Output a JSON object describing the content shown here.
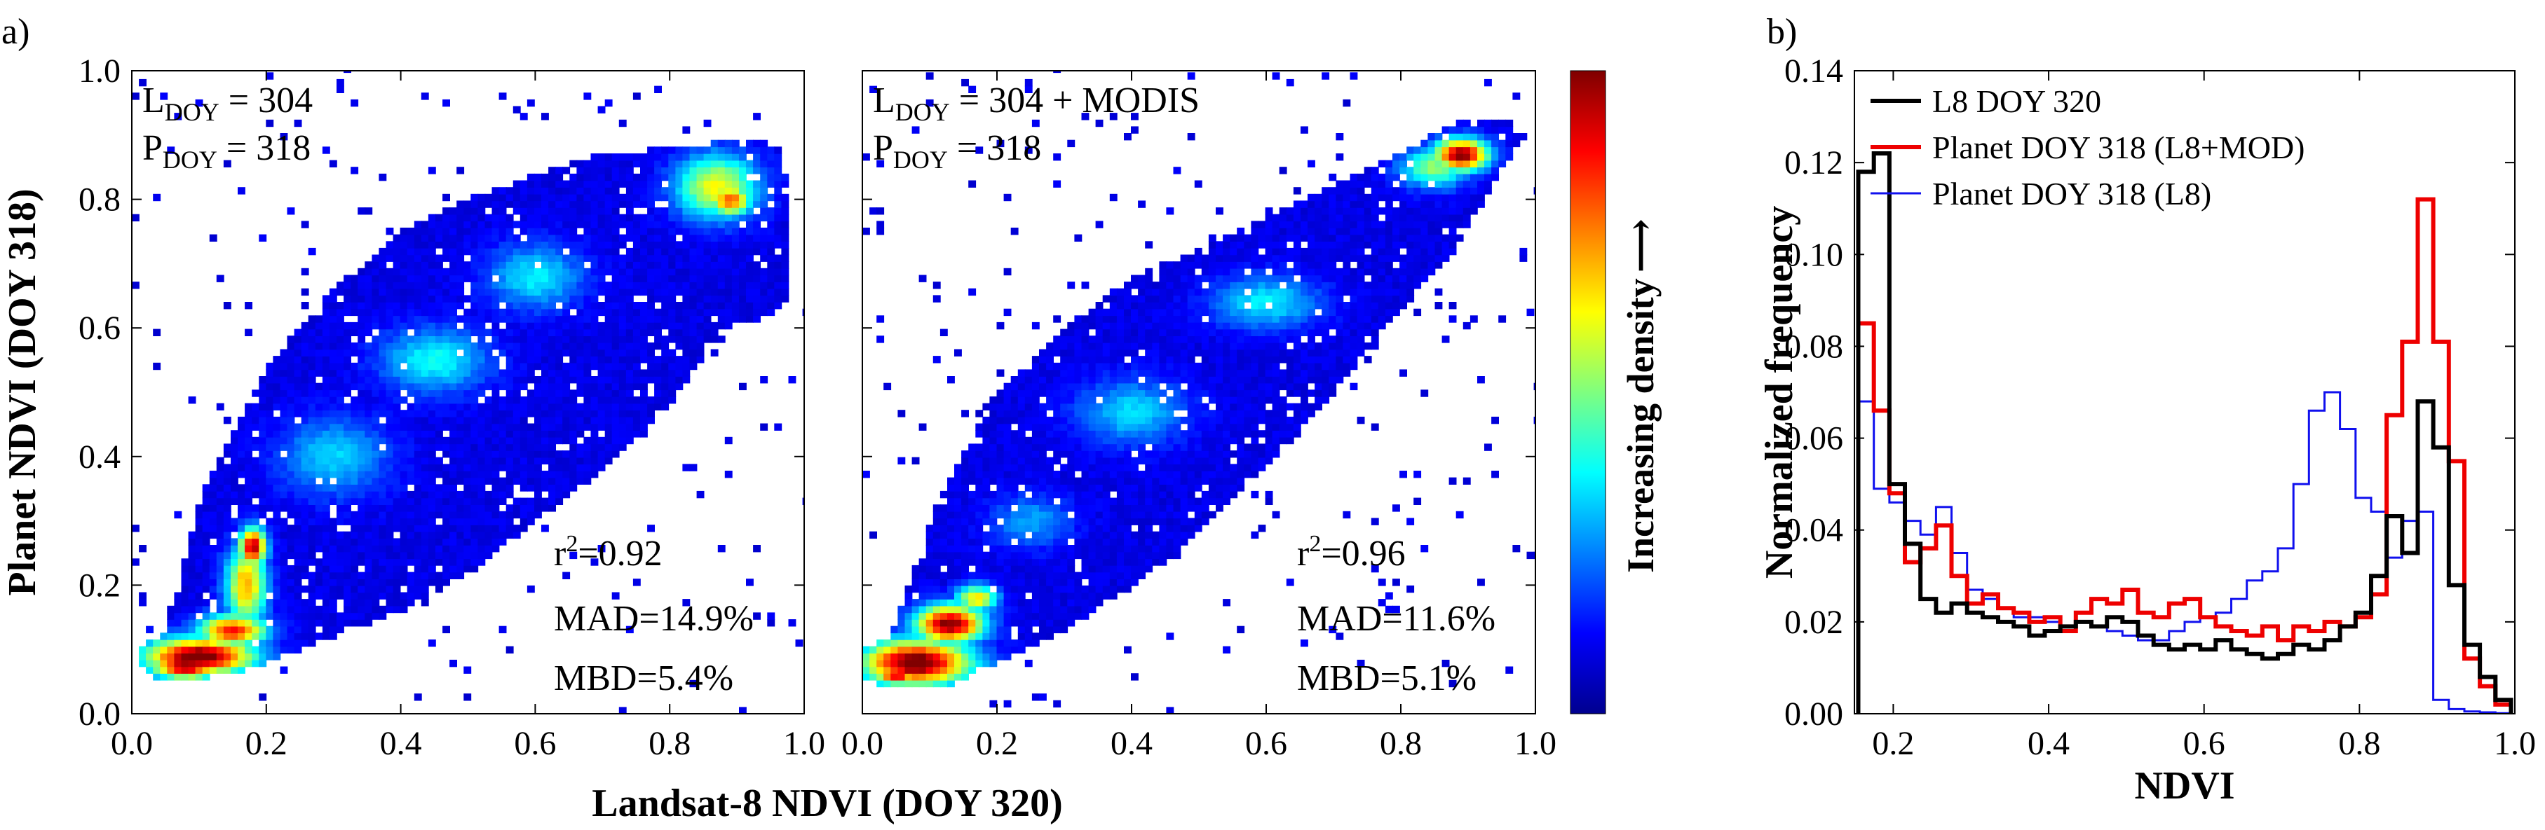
{
  "figure": {
    "panel_a_label": "a)",
    "panel_b_label": "b)",
    "shared_x_label": "Landsat-8 NDVI (DOY 320)",
    "shared_y_label": "Planet NDVI (DOY 318)",
    "colorbar_label": "Increasing density",
    "colorbar_arrow": "⟶"
  },
  "chart_data": [
    {
      "type": "heatmap",
      "name": "scatter-left",
      "xlabel": "Landsat-8 NDVI (DOY 320)",
      "ylabel": "Planet NDVI (DOY 318)",
      "xlim": [
        0.0,
        1.0
      ],
      "ylim": [
        0.0,
        1.0
      ],
      "xticks": [
        0.0,
        0.2,
        0.4,
        0.6,
        0.8,
        1.0
      ],
      "xtick_labels": [
        "0.0",
        "0.2",
        "0.4",
        "0.6",
        "0.8",
        "1.0"
      ],
      "yticks": [
        0.0,
        0.2,
        0.4,
        0.6,
        0.8,
        1.0
      ],
      "ytick_labels": [
        "0.0",
        "0.2",
        "0.4",
        "0.6",
        "0.8",
        "1.0"
      ],
      "annot_top": {
        "l_main": "L",
        "l_sub": "DOY",
        "l_val": " = 304",
        "p_main": "P",
        "p_sub": "DOY",
        "p_val": " = 318"
      },
      "annot_stats": {
        "r2_main": "r",
        "r2_sup": "2",
        "r2_val": "=0.92",
        "mad": "MAD=14.9%",
        "mbd": "MBD=5.4%"
      },
      "upper_envelope": [
        [
          0.03,
          0.07
        ],
        [
          0.05,
          0.14
        ],
        [
          0.07,
          0.2
        ],
        [
          0.1,
          0.33
        ],
        [
          0.15,
          0.44
        ],
        [
          0.2,
          0.54
        ],
        [
          0.3,
          0.66
        ],
        [
          0.4,
          0.75
        ],
        [
          0.5,
          0.8
        ],
        [
          0.6,
          0.84
        ],
        [
          0.7,
          0.87
        ],
        [
          0.8,
          0.88
        ],
        [
          0.88,
          0.89
        ],
        [
          0.96,
          0.89
        ],
        [
          0.98,
          0.8
        ],
        [
          0.98,
          0.65
        ]
      ],
      "lower_envelope": [
        [
          0.98,
          0.65
        ],
        [
          0.95,
          0.62
        ],
        [
          0.88,
          0.6
        ],
        [
          0.8,
          0.48
        ],
        [
          0.7,
          0.38
        ],
        [
          0.6,
          0.3
        ],
        [
          0.5,
          0.22
        ],
        [
          0.4,
          0.16
        ],
        [
          0.3,
          0.12
        ],
        [
          0.2,
          0.08
        ],
        [
          0.12,
          0.06
        ],
        [
          0.06,
          0.05
        ],
        [
          0.03,
          0.05
        ]
      ],
      "density_centers": [
        {
          "x": 0.1,
          "y": 0.09,
          "w": 0.08,
          "h": 0.028,
          "level": 1.0
        },
        {
          "x": 0.08,
          "y": 0.075,
          "w": 0.05,
          "h": 0.02,
          "level": 0.95
        },
        {
          "x": 0.15,
          "y": 0.13,
          "w": 0.05,
          "h": 0.025,
          "level": 0.8
        },
        {
          "x": 0.17,
          "y": 0.2,
          "w": 0.03,
          "h": 0.06,
          "level": 0.65
        },
        {
          "x": 0.18,
          "y": 0.26,
          "w": 0.02,
          "h": 0.03,
          "level": 0.9
        },
        {
          "x": 0.87,
          "y": 0.82,
          "w": 0.06,
          "h": 0.05,
          "level": 0.55
        },
        {
          "x": 0.89,
          "y": 0.8,
          "w": 0.03,
          "h": 0.025,
          "level": 0.75
        },
        {
          "x": 0.45,
          "y": 0.55,
          "w": 0.08,
          "h": 0.05,
          "level": 0.3
        },
        {
          "x": 0.6,
          "y": 0.68,
          "w": 0.07,
          "h": 0.05,
          "level": 0.28
        },
        {
          "x": 0.3,
          "y": 0.4,
          "w": 0.08,
          "h": 0.06,
          "level": 0.25
        }
      ]
    },
    {
      "type": "heatmap",
      "name": "scatter-right",
      "xlabel": "Landsat-8 NDVI (DOY 320)",
      "ylabel": "Planet NDVI (DOY 318)",
      "xlim": [
        0.0,
        1.0
      ],
      "ylim": [
        0.0,
        1.0
      ],
      "xticks": [
        0.0,
        0.2,
        0.4,
        0.6,
        0.8,
        1.0
      ],
      "xtick_labels": [
        "0.0",
        "0.2",
        "0.4",
        "0.6",
        "0.8",
        "1.0"
      ],
      "yticks": [
        0.0,
        0.2,
        0.4,
        0.6,
        0.8,
        1.0
      ],
      "annot_top": {
        "l_main": "L",
        "l_sub": "DOY",
        "l_val": " = 304 + MODIS",
        "p_main": "P",
        "p_sub": "DOY",
        "p_val": " = 318"
      },
      "annot_stats": {
        "r2_main": "r",
        "r2_sup": "2",
        "r2_val": "=0.96",
        "mad": "MAD=11.6%",
        "mbd": "MBD=5.1%"
      },
      "upper_envelope": [
        [
          0.02,
          0.06
        ],
        [
          0.04,
          0.12
        ],
        [
          0.07,
          0.2
        ],
        [
          0.1,
          0.3
        ],
        [
          0.15,
          0.4
        ],
        [
          0.2,
          0.5
        ],
        [
          0.3,
          0.6
        ],
        [
          0.4,
          0.68
        ],
        [
          0.5,
          0.72
        ],
        [
          0.6,
          0.77
        ],
        [
          0.7,
          0.82
        ],
        [
          0.8,
          0.87
        ],
        [
          0.88,
          0.92
        ],
        [
          0.95,
          0.92
        ],
        [
          0.98,
          0.89
        ]
      ],
      "lower_envelope": [
        [
          0.98,
          0.89
        ],
        [
          0.95,
          0.85
        ],
        [
          0.88,
          0.72
        ],
        [
          0.8,
          0.63
        ],
        [
          0.7,
          0.5
        ],
        [
          0.6,
          0.38
        ],
        [
          0.5,
          0.28
        ],
        [
          0.4,
          0.2
        ],
        [
          0.3,
          0.13
        ],
        [
          0.2,
          0.08
        ],
        [
          0.12,
          0.05
        ],
        [
          0.05,
          0.04
        ],
        [
          0.02,
          0.04
        ]
      ],
      "density_centers": [
        {
          "x": 0.08,
          "y": 0.08,
          "w": 0.08,
          "h": 0.035,
          "level": 1.0
        },
        {
          "x": 0.13,
          "y": 0.14,
          "w": 0.05,
          "h": 0.03,
          "level": 0.95
        },
        {
          "x": 0.05,
          "y": 0.06,
          "w": 0.03,
          "h": 0.015,
          "level": 0.85
        },
        {
          "x": 0.17,
          "y": 0.18,
          "w": 0.03,
          "h": 0.02,
          "level": 0.6
        },
        {
          "x": 0.89,
          "y": 0.87,
          "w": 0.04,
          "h": 0.025,
          "level": 0.95
        },
        {
          "x": 0.85,
          "y": 0.85,
          "w": 0.05,
          "h": 0.03,
          "level": 0.45
        },
        {
          "x": 0.6,
          "y": 0.64,
          "w": 0.08,
          "h": 0.04,
          "level": 0.28
        },
        {
          "x": 0.4,
          "y": 0.47,
          "w": 0.08,
          "h": 0.05,
          "level": 0.25
        },
        {
          "x": 0.25,
          "y": 0.3,
          "w": 0.06,
          "h": 0.04,
          "level": 0.2
        }
      ]
    },
    {
      "type": "line",
      "name": "histogram",
      "xlabel": "NDVI",
      "ylabel": "Normalized frequency",
      "xlim": [
        0.15,
        1.0
      ],
      "ylim": [
        0.0,
        0.14
      ],
      "xticks": [
        0.2,
        0.4,
        0.6,
        0.8,
        1.0
      ],
      "xtick_labels": [
        "0.2",
        "0.4",
        "0.6",
        "0.8",
        "1.0"
      ],
      "yticks": [
        0.0,
        0.02,
        0.04,
        0.06,
        0.08,
        0.1,
        0.12,
        0.14
      ],
      "ytick_labels": [
        "0.00",
        "0.02",
        "0.04",
        "0.06",
        "0.08",
        "0.10",
        "0.12",
        "0.14"
      ],
      "bin_edges": [
        0.155,
        0.175,
        0.195,
        0.215,
        0.235,
        0.255,
        0.275,
        0.295,
        0.315,
        0.335,
        0.355,
        0.375,
        0.395,
        0.415,
        0.435,
        0.455,
        0.475,
        0.495,
        0.515,
        0.535,
        0.555,
        0.575,
        0.595,
        0.615,
        0.635,
        0.655,
        0.675,
        0.695,
        0.715,
        0.735,
        0.755,
        0.775,
        0.795,
        0.815,
        0.835,
        0.855,
        0.875,
        0.895,
        0.915,
        0.935,
        0.955,
        0.975,
        0.995
      ],
      "series": [
        {
          "name": "L8 DOY 320",
          "color": "#000000",
          "values": [
            0.118,
            0.122,
            0.05,
            0.037,
            0.025,
            0.022,
            0.024,
            0.022,
            0.021,
            0.02,
            0.019,
            0.017,
            0.018,
            0.019,
            0.02,
            0.019,
            0.021,
            0.02,
            0.017,
            0.015,
            0.014,
            0.015,
            0.014,
            0.016,
            0.014,
            0.013,
            0.012,
            0.013,
            0.015,
            0.014,
            0.016,
            0.019,
            0.022,
            0.03,
            0.043,
            0.035,
            0.068,
            0.058,
            0.028,
            0.015,
            0.008,
            0.003
          ]
        },
        {
          "name": "Planet DOY 318 (L8+MOD)",
          "color": "#ee0000",
          "values": [
            0.085,
            0.066,
            0.048,
            0.033,
            0.036,
            0.041,
            0.03,
            0.024,
            0.026,
            0.023,
            0.022,
            0.02,
            0.021,
            0.018,
            0.022,
            0.025,
            0.024,
            0.027,
            0.022,
            0.021,
            0.024,
            0.025,
            0.021,
            0.019,
            0.018,
            0.017,
            0.019,
            0.016,
            0.019,
            0.018,
            0.02,
            0.019,
            0.021,
            0.026,
            0.065,
            0.081,
            0.112,
            0.081,
            0.055,
            0.012,
            0.006,
            0.002
          ]
        },
        {
          "name": "Planet DOY 318 (L8)",
          "color": "#1010ee",
          "values": [
            0.068,
            0.049,
            0.046,
            0.042,
            0.039,
            0.045,
            0.035,
            0.027,
            0.025,
            0.023,
            0.021,
            0.021,
            0.02,
            0.019,
            0.02,
            0.019,
            0.018,
            0.017,
            0.016,
            0.016,
            0.018,
            0.02,
            0.021,
            0.022,
            0.025,
            0.029,
            0.031,
            0.036,
            0.05,
            0.066,
            0.07,
            0.062,
            0.047,
            0.044,
            0.034,
            0.042,
            0.044,
            0.003,
            0.001,
            0.0005,
            0.0003,
            0.0001
          ]
        }
      ]
    }
  ]
}
